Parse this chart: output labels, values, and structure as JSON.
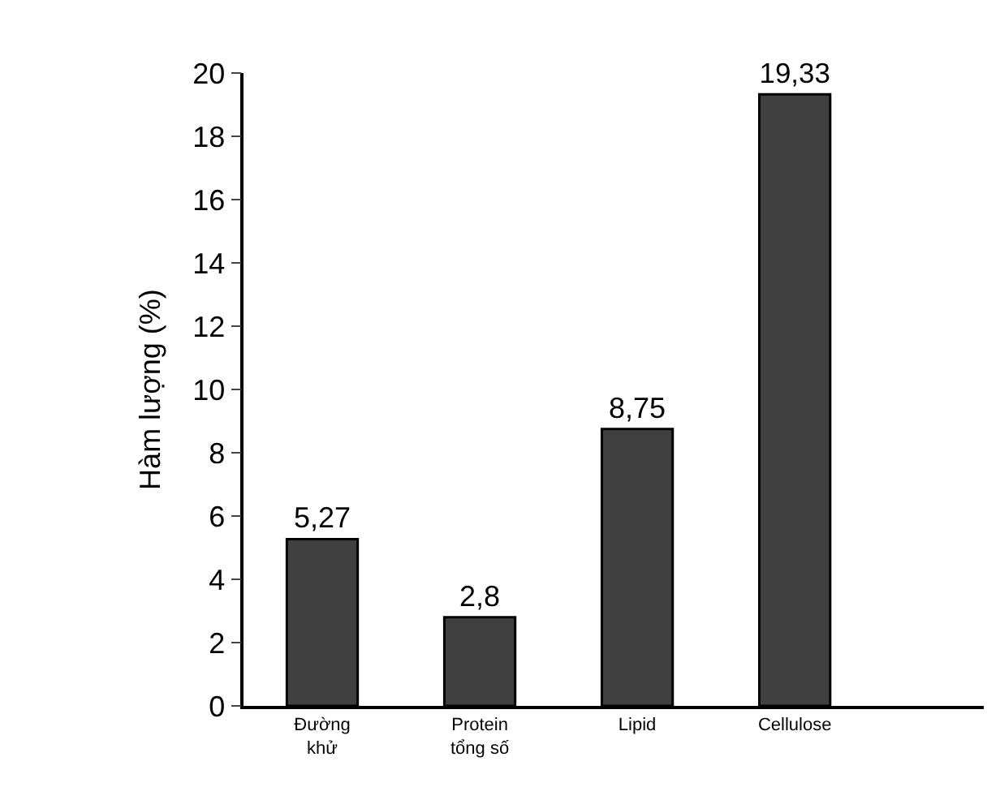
{
  "chart_data": {
    "type": "bar",
    "ylabel": "Hàm lượng (%)",
    "categories": [
      "Đường khử",
      "Protein tổng số",
      "Lipid",
      "Cellulose"
    ],
    "values": [
      5.27,
      2.8,
      8.75,
      19.33
    ],
    "value_labels": [
      "5,27",
      "2,8",
      "8,75",
      "19,33"
    ],
    "color": "#404040",
    "ylim": [
      0,
      20
    ],
    "yticks": [
      0,
      2,
      4,
      6,
      8,
      10,
      12,
      14,
      16,
      18,
      20
    ]
  }
}
